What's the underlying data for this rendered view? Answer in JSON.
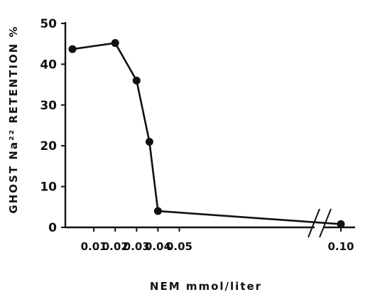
{
  "chart_data": {
    "type": "line",
    "title": "",
    "xlabel": "NEM mmol/liter",
    "ylabel": "GHOST Na²² RETENTION %",
    "ylim": [
      0,
      50
    ],
    "xlim": [
      0,
      0.1
    ],
    "axis_break": "between 0.05 and 0.10",
    "y_ticks": [
      "0",
      "10",
      "20",
      "30",
      "40",
      "50"
    ],
    "x_ticks": [
      "0.01",
      "0.02",
      "0.03",
      "0.04",
      "0.05",
      "0.10"
    ],
    "grid": false,
    "series": [
      {
        "x": [
          0.0,
          0.02,
          0.03,
          0.036,
          0.04,
          0.1
        ],
        "y": [
          43.7,
          45.2,
          36.0,
          21.0,
          4.0,
          0.8
        ]
      }
    ],
    "colors": {
      "line": "#111111",
      "marker": "#111111"
    }
  }
}
